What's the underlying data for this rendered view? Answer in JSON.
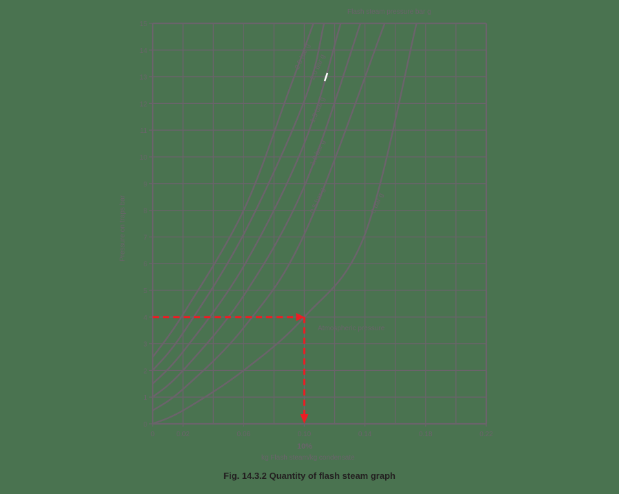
{
  "caption": "Fig. 14.3.2 Quantity of flash steam graph",
  "chart_data": {
    "type": "line",
    "title": "Fig. 14.3.2 Quantity of flash steam graph",
    "xlabel": "kg Flash steam/kg condensate",
    "ylabel": "Pressure on traps bar",
    "xlim": [
      0,
      0.22
    ],
    "ylim": [
      0,
      15
    ],
    "x_ticks": [
      "0",
      "0.02",
      "0.06",
      "0.10",
      "0.14",
      "0.18",
      "0.22"
    ],
    "x_tick_values": [
      0,
      0.02,
      0.06,
      0.1,
      0.14,
      0.18,
      0.22
    ],
    "y_ticks": [
      "0",
      "1",
      "2",
      "3",
      "4",
      "5",
      "6",
      "7",
      "8",
      "9",
      "10",
      "11",
      "12",
      "13",
      "14",
      "15"
    ],
    "grid": true,
    "legend_title": "Flash steam pressure bar g",
    "series": [
      {
        "name": "2.5 bar g",
        "points": [
          [
            0,
            2.5
          ],
          [
            0.02,
            4.1
          ],
          [
            0.06,
            8.0
          ],
          [
            0.09,
            12.5
          ],
          [
            0.106,
            15
          ]
        ]
      },
      {
        "name": "2.0 bar g",
        "points": [
          [
            0,
            2.0
          ],
          [
            0.02,
            3.4
          ],
          [
            0.06,
            7.1
          ],
          [
            0.1,
            12.1
          ],
          [
            0.113,
            15
          ]
        ]
      },
      {
        "name": "1.5 bar g",
        "points": [
          [
            0,
            1.5
          ],
          [
            0.02,
            2.7
          ],
          [
            0.06,
            5.9
          ],
          [
            0.1,
            10.5
          ],
          [
            0.124,
            15
          ]
        ]
      },
      {
        "name": "1.0 bar g",
        "points": [
          [
            0,
            1.0
          ],
          [
            0.02,
            2.0
          ],
          [
            0.06,
            4.8
          ],
          [
            0.1,
            8.9
          ],
          [
            0.137,
            15
          ]
        ]
      },
      {
        "name": "0.5 bar g",
        "points": [
          [
            0,
            0.5
          ],
          [
            0.02,
            1.3
          ],
          [
            0.06,
            3.6
          ],
          [
            0.1,
            7.1
          ],
          [
            0.153,
            15
          ]
        ]
      },
      {
        "name": "0 bar g",
        "points": [
          [
            0,
            0
          ],
          [
            0.02,
            0.5
          ],
          [
            0.06,
            2.0
          ],
          [
            0.1,
            4.0
          ],
          [
            0.14,
            7.1
          ],
          [
            0.174,
            15
          ]
        ]
      }
    ],
    "annotations": [
      {
        "text": "Atmospheric pressure",
        "x": 0.11,
        "y": 3.6
      },
      {
        "text": "10%",
        "x": 0.1,
        "y": -0.8
      },
      {
        "type": "dashed-arrow",
        "color": "#ed1c24",
        "from": [
          0,
          4
        ],
        "to": [
          0.1,
          4
        ]
      },
      {
        "type": "dashed-arrow",
        "color": "#ed1c24",
        "from": [
          0.1,
          4
        ],
        "to": [
          0.1,
          0
        ]
      }
    ]
  },
  "labels": {
    "legend_title": "Flash steam pressure bar g",
    "atm": "Atmospheric pressure",
    "pct": "10%",
    "xlabel": "kg Flash steam/kg condensate",
    "ylabel": "Pressure on traps bar",
    "curves": [
      "2.5 bar g",
      "2.0 bar g",
      "1.5 bar g",
      "1.0 bar g",
      "0.5 bar g",
      "0 bar g"
    ]
  }
}
